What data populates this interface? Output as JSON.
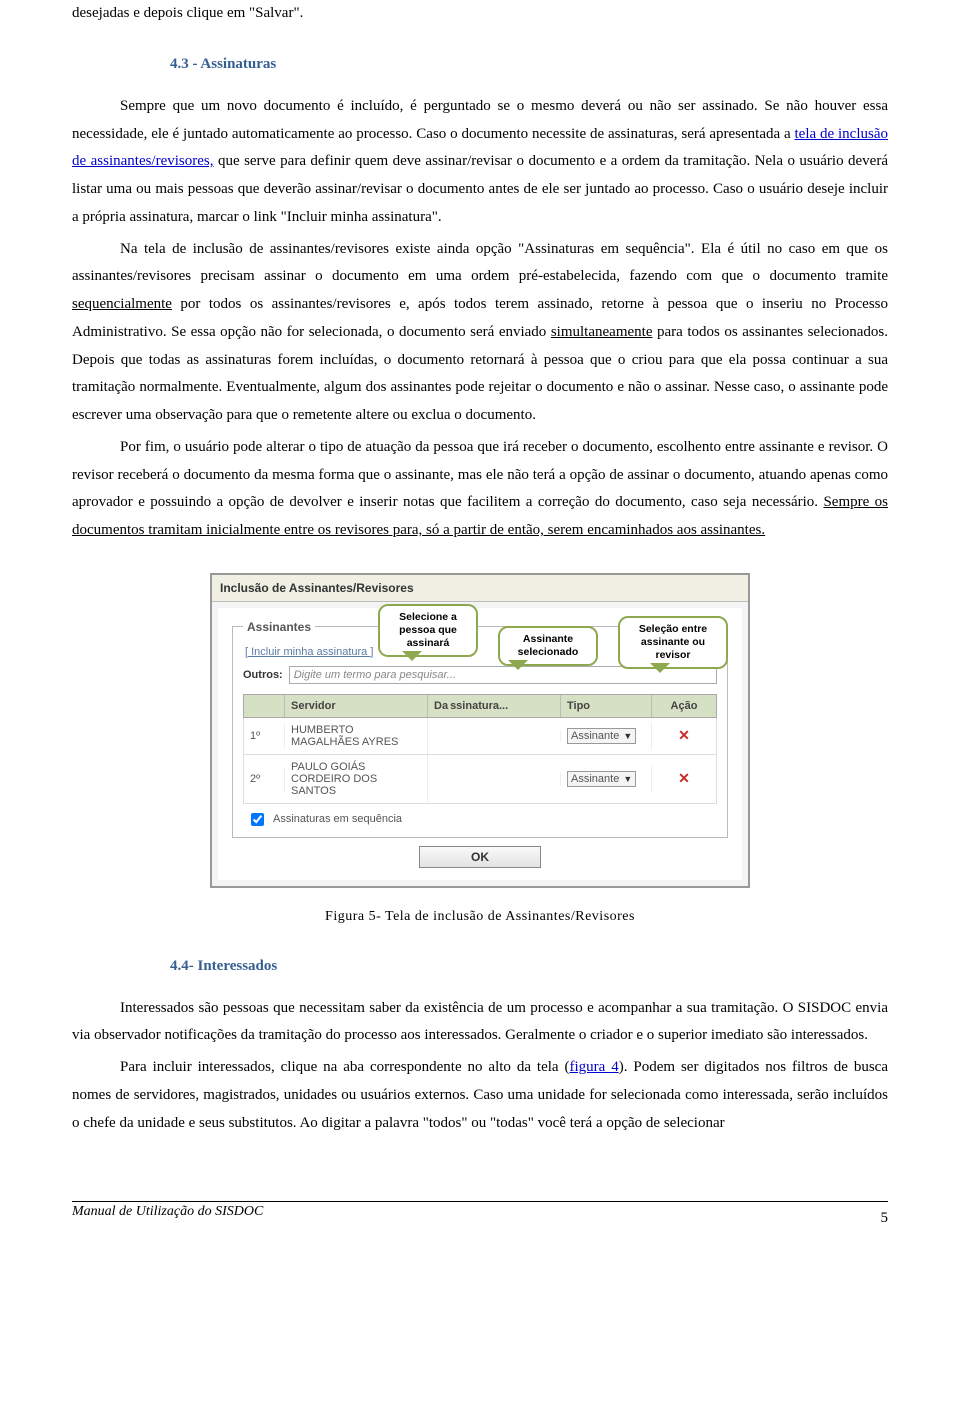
{
  "intro_line": "desejadas e depois clique em \"Salvar\".",
  "section43": {
    "title": "4.3 - Assinaturas",
    "p1_a": "Sempre que um novo documento é incluído, é perguntado se o mesmo deverá ou não ser assinado. Se não houver essa necessidade, ele é juntado automaticamente ao processo. Caso o documento necessite de assinaturas, será apresentada a ",
    "p1_link": "tela de inclusão de assinantes/revisores,",
    "p1_b": " que serve para definir quem deve assinar/revisar o documento e a ordem da tramitação. Nela o usuário deverá listar uma ou mais pessoas que deverão assinar/revisar o documento antes de ele ser juntado ao processo. Caso o usuário deseje incluir a própria assinatura, marcar o link \"Incluir minha assinatura\".",
    "p2_a": "Na tela de inclusão de assinantes/revisores existe ainda opção \"Assinaturas em sequência\". Ela é útil no caso em que os assinantes/revisores precisam assinar o documento em uma ordem pré-estabelecida, fazendo com que o documento tramite ",
    "p2_u1": "sequencialmente",
    "p2_b": " por todos os assinantes/revisores e, após todos terem assinado, retorne à pessoa que o inseriu no Processo Administrativo. Se essa opção não for selecionada,  o documento será enviado ",
    "p2_u2": "simultaneamente",
    "p2_c": " para todos os assinantes selecionados. Depois que todas as assinaturas forem incluídas, o documento retornará à pessoa que o criou para que ela possa continuar a sua tramitação normalmente. Eventualmente, algum dos assinantes pode rejeitar o documento e não o assinar. Nesse caso, o assinante pode escrever uma observação para que o remetente altere ou exclua o documento.",
    "p3_a": "Por fim, o usuário pode alterar o tipo de atuação da pessoa que irá receber o documento, escolhento entre assinante e revisor. O revisor receberá o documento da mesma forma que o assinante, mas ele não terá a opção de assinar o documento, atuando apenas como aprovador e possuindo a opção de devolver e inserir notas que facilitem a correção do documento, caso seja necessário. ",
    "p3_u": "Sempre os documentos tramitam inicialmente entre os revisores para, só a partir de então, serem encaminhados aos assinantes."
  },
  "dialog": {
    "title": "Inclusão de Assinantes/Revisores",
    "fieldset_legend": "Assinantes",
    "incluir_link": "[ Incluir minha assinatura ]",
    "outros_label": "Outros:",
    "outros_placeholder": "Digite um termo para pesquisar...",
    "columns": {
      "servidor": "Servidor",
      "data": "ssinatura...",
      "data_prefix": "Da",
      "tipo": "Tipo",
      "acao": "Ação"
    },
    "rows": [
      {
        "idx": "1º",
        "servidor": "HUMBERTO MAGALHÃES AYRES",
        "tipo": "Assinante"
      },
      {
        "idx": "2º",
        "servidor": "PAULO GOIÁS CORDEIRO DOS SANTOS",
        "tipo": "Assinante"
      }
    ],
    "seq_label": "Assinaturas em sequência",
    "seq_checked": true,
    "ok_label": "OK",
    "callouts": {
      "c1": "Selecione a pessoa que assinará",
      "c2": "Assinante selecionado",
      "c3": "Seleção entre assinante ou revisor"
    }
  },
  "figure_caption": "Figura 5- Tela de inclusão de Assinantes/Revisores",
  "section44": {
    "title": "4.4- Interessados",
    "p1": "Interessados são pessoas que necessitam saber da existência de um processo e  acompanhar a sua tramitação. O SISDOC envia via observador notificações da tramitação do processo aos interessados. Geralmente o criador e o superior imediato são interessados.",
    "p2_a": "Para incluir interessados, clique na aba correspondente no alto da tela (",
    "p2_link": "figura 4",
    "p2_b": "). Podem ser digitados nos filtros de busca nomes de servidores, magistrados, unidades ou usuários externos. Caso uma unidade for selecionada como interessada, serão incluídos o chefe da unidade e seus substitutos. Ao digitar a palavra \"todos\" ou \"todas\" você terá a opção de selecionar"
  },
  "footer": {
    "left": "Manual de Utilização do SISDOC",
    "page": "5"
  }
}
